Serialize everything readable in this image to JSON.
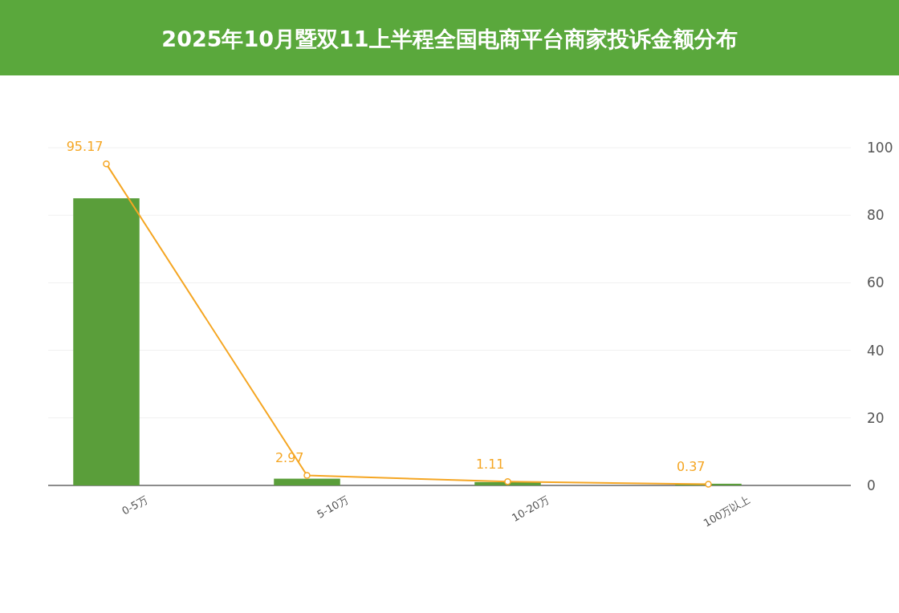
{
  "chart_data": {
    "type": "bar",
    "title": "2025年10月暨双11上半程全国电商平台商家投诉金额分布",
    "categories": [
      "0-5万",
      "5-10万",
      "10-20万",
      "100万以上"
    ],
    "series": [
      {
        "color": "#5a9e3a",
        "values": [
          85,
          2,
          1,
          0.5
        ]
      },
      {
        "type": "line",
        "color": "#f5a623",
        "values": [
          95.17,
          2.97,
          1.11,
          0.37
        ],
        "value_labels": [
          "95.17",
          "2.97",
          "1.11",
          "0.37"
        ],
        "marker": "circle"
      }
    ],
    "ylim": [
      0,
      100
    ],
    "yticks": [
      0,
      20,
      40,
      60,
      80,
      100
    ],
    "grid": "y"
  }
}
